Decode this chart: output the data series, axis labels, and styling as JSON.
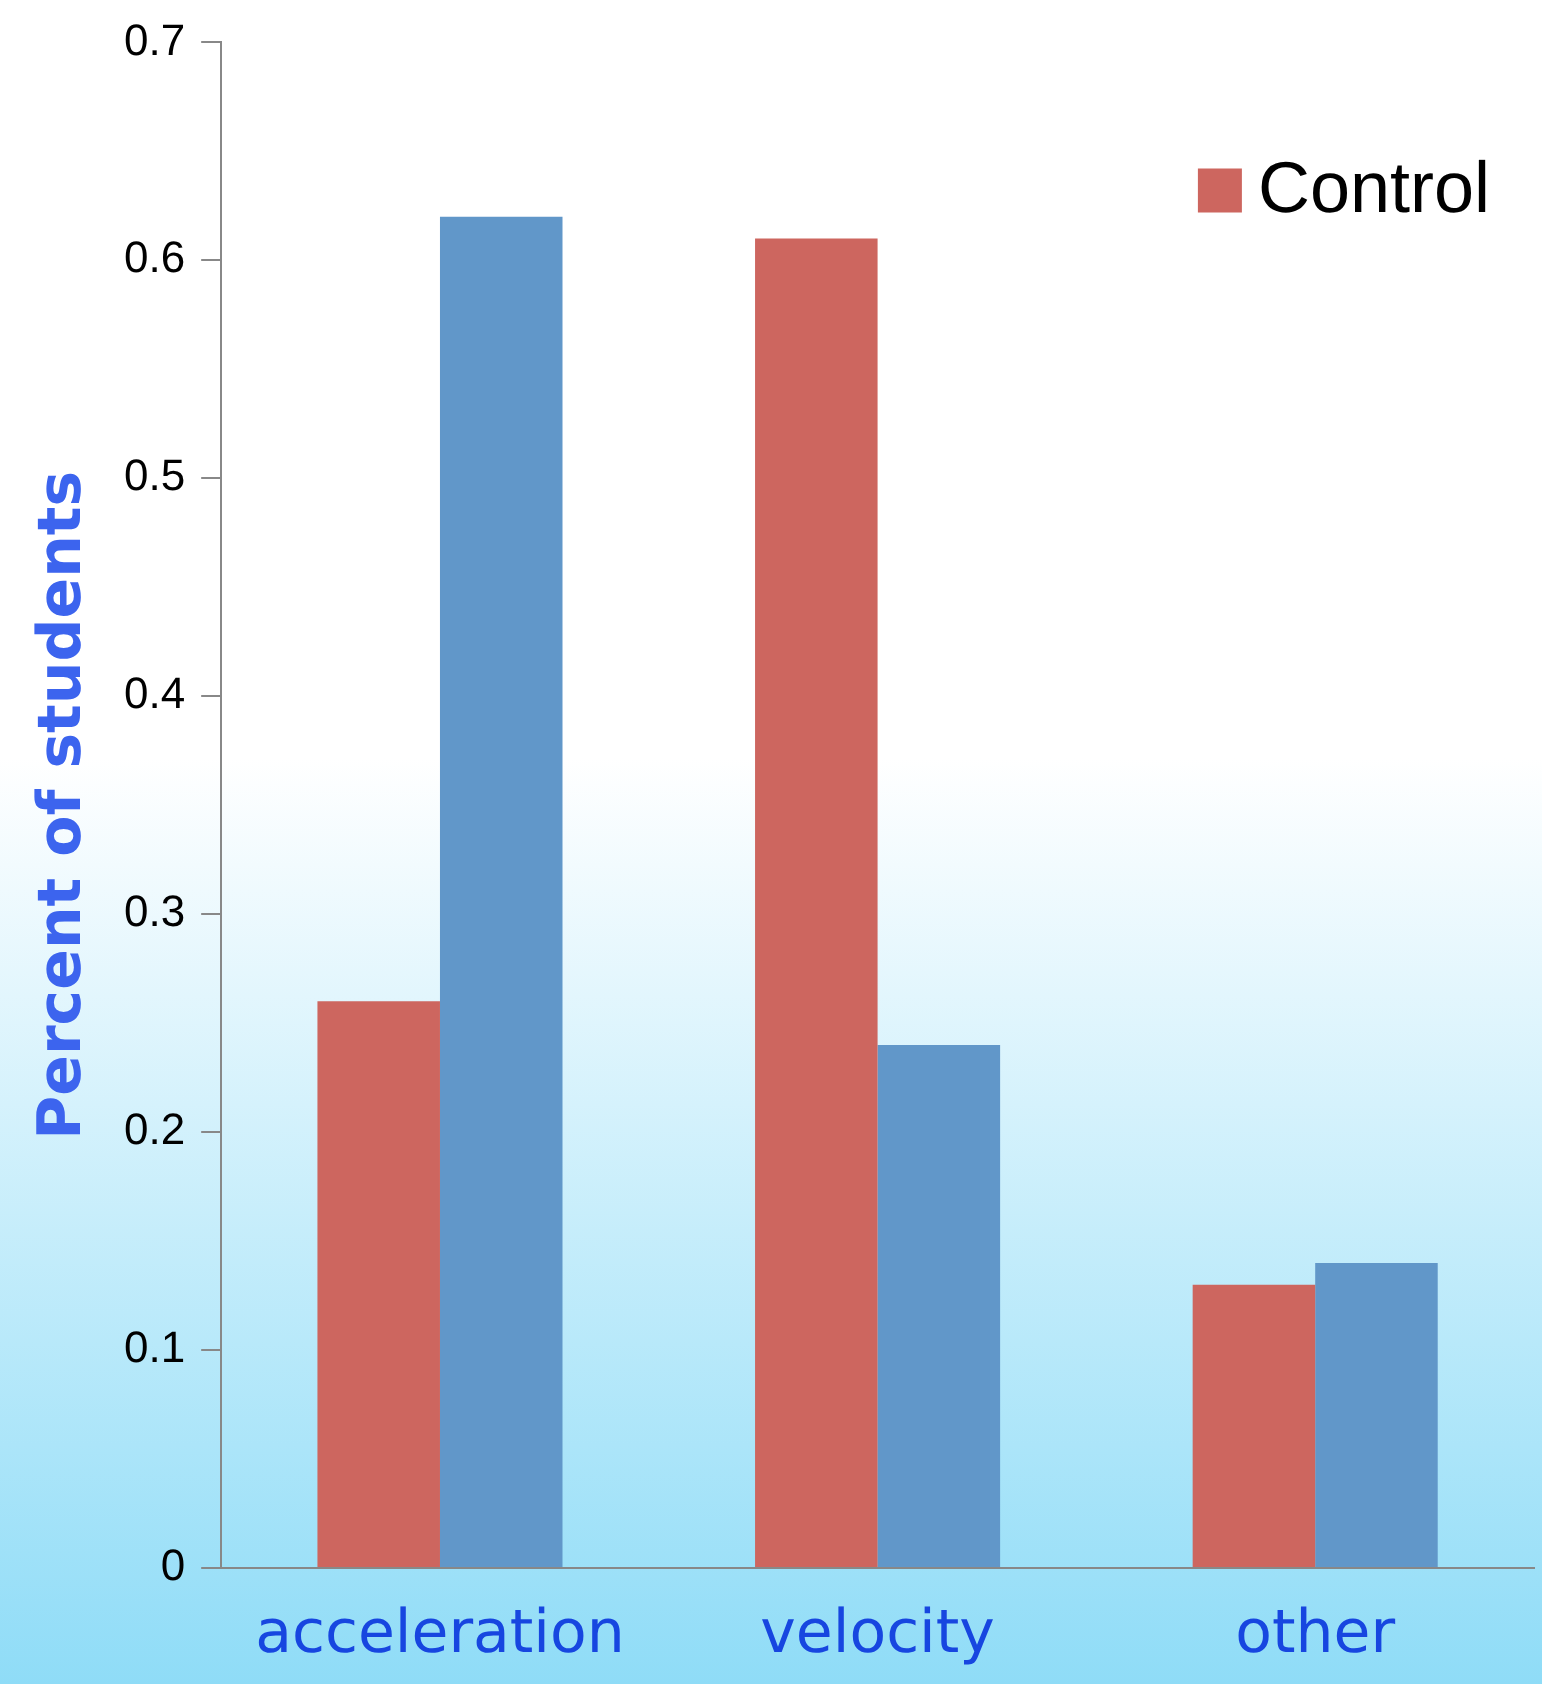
{
  "chart_data": {
    "type": "bar",
    "ylabel": "Percent of students",
    "categories": [
      "acceleration",
      "velocity",
      "other"
    ],
    "series": [
      {
        "name": "Control",
        "color": "#cd665f",
        "values": [
          0.26,
          0.61,
          0.13
        ]
      },
      {
        "color": "#6197c9",
        "values": [
          0.62,
          0.24,
          0.14
        ]
      }
    ],
    "ylim": [
      0,
      0.7
    ],
    "yticks": [
      0,
      0.1,
      0.2,
      0.3,
      0.4,
      0.5,
      0.6,
      0.7
    ],
    "grid": false,
    "legend": "top right"
  }
}
